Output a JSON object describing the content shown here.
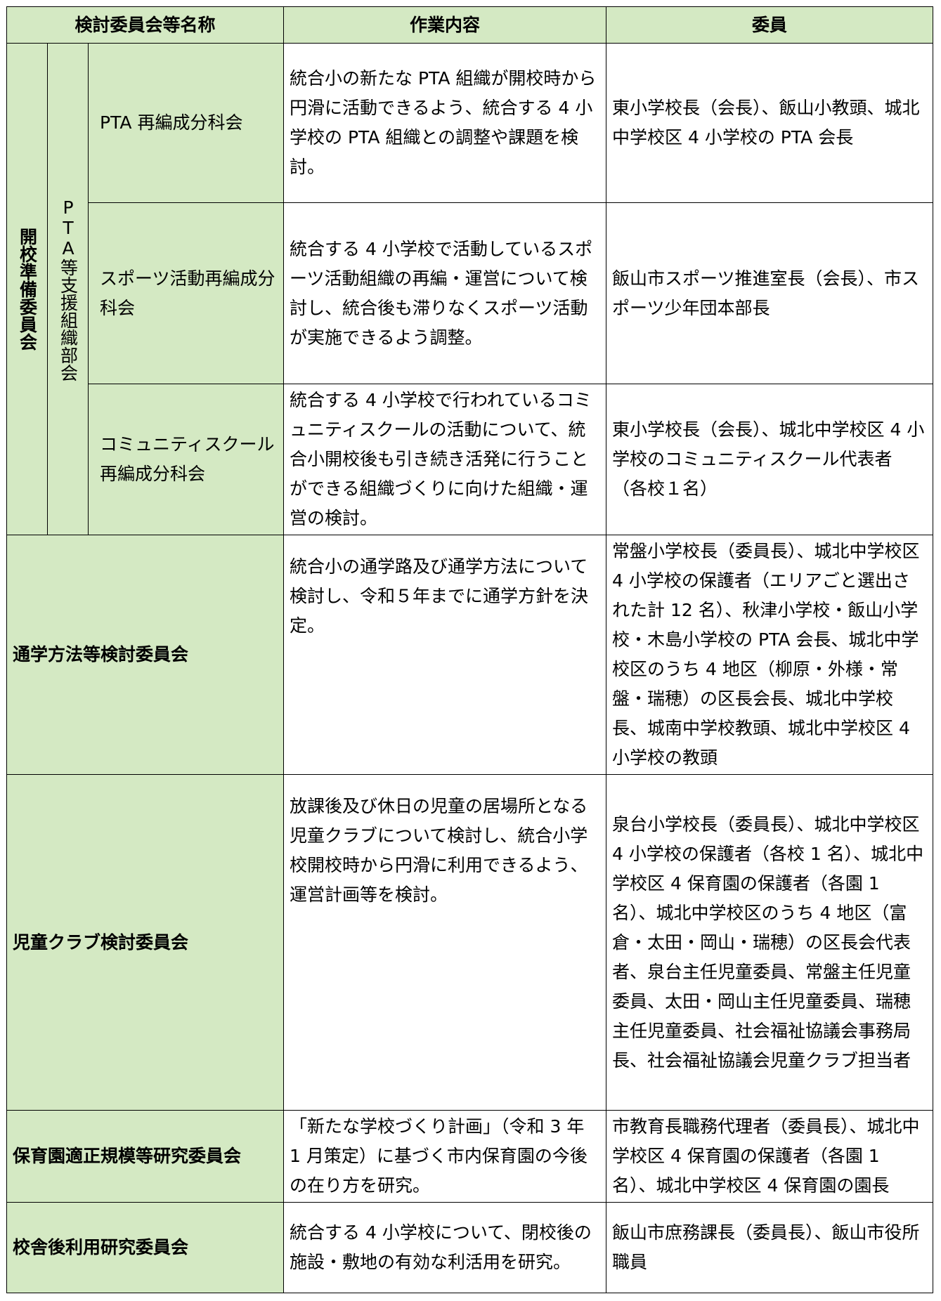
{
  "header": [
    "検討委員会等名称",
    "作業内容",
    "委員"
  ],
  "group": {
    "name": "開校準備委員会",
    "subgroup": "PTA等支援組織部会",
    "rows": [
      {
        "name": "PTA 再編成分科会",
        "task": "統合小の新たな PTA 組織が開校時から円滑に活動できるよう、統合する 4 小学校の PTA 組織との調整や課題を検討。",
        "members": "東小学校長（会長）、飯山小教頭、城北中学校区 4 小学校の PTA 会長"
      },
      {
        "name": "スポーツ活動再編成分科会",
        "task": "統合する 4 小学校で活動しているスポーツ活動組織の再編・運営について検討し、統合後も滞りなくスポーツ活動が実施できるよう調整。",
        "members": "飯山市スポーツ推進室長（会長）、市スポーツ少年団本部長"
      },
      {
        "name": "コミュニティスクール再編成分科会",
        "task": "統合する 4 小学校で行われているコミュニティスクールの活動について、統合小開校後も引き続き活発に行うことができる組織づくりに向けた組織・運営の検討。",
        "members": "東小学校長（会長）、城北中学校区 4 小学校のコミュニティスクール代表者（各校１名）"
      }
    ]
  },
  "rows": [
    {
      "name": "通学方法等検討委員会",
      "task": "統合小の通学路及び通学方法について検討し、令和５年までに通学方針を決定。",
      "members": "常盤小学校長（委員長）、城北中学校区 4 小学校の保護者（エリアごと選出された計 12 名）、秋津小学校・飯山小学校・木島小学校の PTA 会長、城北中学校区のうち 4 地区（柳原・外様・常盤・瑞穂）の区長会長、城北中学校長、城南中学校教頭、城北中学校区 4 小学校の教頭"
    },
    {
      "name": "児童クラブ検討委員会",
      "task": "放課後及び休日の児童の居場所となる児童クラブについて検討し、統合小学校開校時から円滑に利用できるよう、運営計画等を検討。",
      "members": "泉台小学校長（委員長）、城北中学校区 4 小学校の保護者（各校 1 名）、城北中学校区 4 保育園の保護者（各園 1 名）、城北中学校区のうち 4 地区（富倉・太田・岡山・瑞穂）の区長会代表者、泉台主任児童委員、常盤主任児童委員、太田・岡山主任児童委員、瑞穂主任児童委員、社会福祉協議会事務局長、社会福祉協議会児童クラブ担当者"
    },
    {
      "name": "保育園適正規模等研究委員会",
      "task": "「新たな学校づくり計画」（令和 3 年 1 月策定）に基づく市内保育園の今後の在り方を研究。",
      "members": "市教育長職務代理者（委員長）、城北中学校区 4 保育園の保護者（各園 1 名）、城北中学校区 4 保育園の園長"
    },
    {
      "name": "校舎後利用研究委員会",
      "task": "統合する 4 小学校について、閉校後の施設・敷地の有効な利活用を研究。",
      "members": "飯山市庶務課長（委員長）、飯山市役所職員"
    }
  ]
}
